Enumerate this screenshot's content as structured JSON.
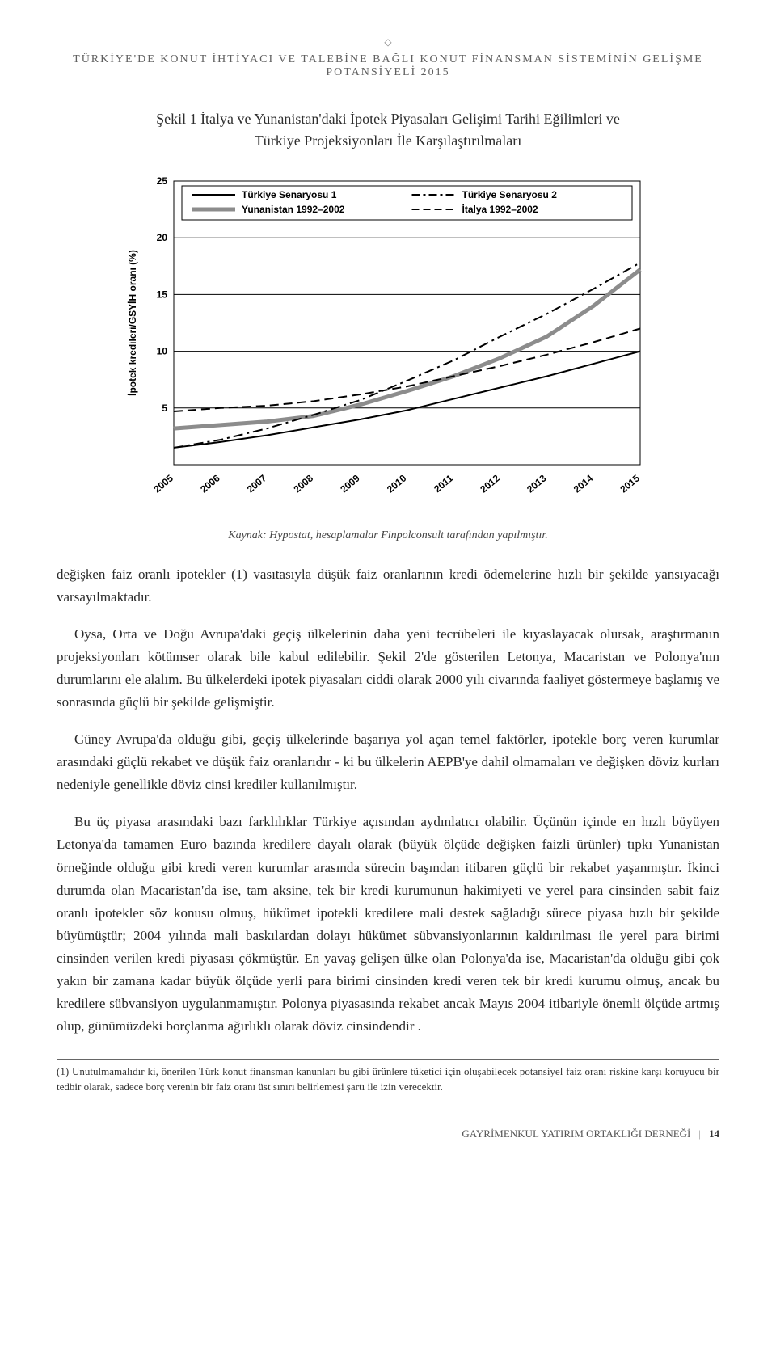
{
  "running_head": "TÜRKİYE'DE KONUT İHTİYACI VE TALEBİNE BAĞLI KONUT FİNANSMAN SİSTEMİNİN GELİŞME POTANSİYELİ 2015",
  "figure_title_line1": "Şekil 1 İtalya ve Yunanistan'daki İpotek Piyasaları Gelişimi Tarihi Eğilimleri ve",
  "figure_title_line2": "Türkiye Projeksiyonları İle Karşılaştırılmaları",
  "chart": {
    "type": "line",
    "background_color": "#ffffff",
    "border_color": "#000000",
    "grid_color": "#000000",
    "ylabel": "İpotek kredileri/GSYİH oranı (%)",
    "ylabel_fontsize": 12,
    "ylim": [
      0,
      25
    ],
    "yticks": [
      0,
      5,
      10,
      15,
      20,
      25
    ],
    "xticks": [
      "2005",
      "2006",
      "2007",
      "2008",
      "2009",
      "2010",
      "2011",
      "2012",
      "2013",
      "2014",
      "2015"
    ],
    "legend": [
      {
        "label": "Türkiye Senaryosu 1",
        "style": "solid-black",
        "color": "#000000",
        "line_width": 2
      },
      {
        "label": "Türkiye Senaryosu 2",
        "style": "dash-dot",
        "color": "#000000",
        "line_width": 2
      },
      {
        "label": "Yunanistan 1992–2002",
        "style": "solid-gray",
        "color": "#8c8c8c",
        "line_width": 5
      },
      {
        "label": "İtalya 1992–2002",
        "style": "dash",
        "color": "#000000",
        "line_width": 2
      }
    ],
    "series": {
      "turkey_s1": [
        1.5,
        2.0,
        2.6,
        3.3,
        4.0,
        4.8,
        5.8,
        6.8,
        7.8,
        8.9,
        10.0
      ],
      "turkey_s2": [
        1.5,
        2.2,
        3.2,
        4.4,
        5.7,
        7.4,
        9.2,
        11.3,
        13.3,
        15.5,
        17.8
      ],
      "greece": [
        3.2,
        3.5,
        3.8,
        4.3,
        5.3,
        6.5,
        7.8,
        9.4,
        11.3,
        14.0,
        17.2
      ],
      "italy": [
        4.7,
        5.0,
        5.2,
        5.6,
        6.2,
        6.9,
        7.8,
        8.7,
        9.7,
        10.8,
        12.0
      ]
    }
  },
  "caption": "Kaynak: Hypostat, hesaplamalar Finpolconsult tarafından yapılmıştır.",
  "para1": "değişken faiz oranlı ipotekler (1) vasıtasıyla düşük faiz oranlarının kredi ödemelerine hızlı bir şekilde yansıyacağı varsayılmaktadır.",
  "para2": "Oysa, Orta ve Doğu Avrupa'daki geçiş ülkelerinin daha yeni tecrübeleri ile kıyaslayacak olursak, araştırmanın projeksiyonları kötümser olarak bile kabul edilebilir. Şekil 2'de gösterilen Letonya, Macaristan ve Polonya'nın durumlarını ele alalım. Bu ülkelerdeki ipotek piyasaları ciddi olarak 2000 yılı civarında faaliyet göstermeye başlamış ve sonrasında güçlü bir şekilde gelişmiştir.",
  "para3": "Güney Avrupa'da olduğu gibi, geçiş ülkelerinde başarıya yol açan temel faktörler, ipotekle borç veren kurumlar arasındaki güçlü rekabet ve düşük faiz oranlarıdır - ki bu ülkelerin AEPB'ye dahil olmamaları ve değişken döviz kurları nedeniyle genellikle döviz cinsi krediler kullanılmıştır.",
  "para4": "Bu üç piyasa arasındaki bazı farklılıklar Türkiye açısından aydınlatıcı olabilir. Üçünün içinde en hızlı büyüyen Letonya'da tamamen Euro bazında kredilere dayalı olarak (büyük ölçüde değişken faizli ürünler) tıpkı Yunanistan örneğinde olduğu gibi kredi veren kurumlar arasında sürecin başından itibaren güçlü bir rekabet yaşanmıştır. İkinci durumda olan Macaristan'da ise, tam aksine, tek bir kredi kurumunun hakimiyeti ve yerel para cinsinden sabit faiz oranlı ipotekler söz konusu olmuş, hükümet ipotekli kredilere mali destek sağladığı sürece piyasa hızlı bir şekilde büyümüştür; 2004 yılında mali baskılardan dolayı hükümet sübvansiyonlarının kaldırılması ile yerel para birimi cinsinden verilen kredi piyasası çökmüştür. En yavaş gelişen ülke olan Polonya'da ise, Macaristan'da olduğu gibi çok yakın bir zamana kadar büyük ölçüde yerli para birimi cinsinden kredi veren tek bir kredi kurumu olmuş, ancak bu kredilere sübvansiyon uygulanmamıştır. Polonya piyasasında rekabet ancak Mayıs 2004 itibariyle önemli ölçüde artmış olup, günümüzdeki  borçlanma ağırlıklı olarak döviz cinsindendir .",
  "footnote": "(1) Unutulmamalıdır ki, önerilen Türk konut finansman kanunları bu gibi ürünlere tüketici için oluşabilecek potansiyel faiz oranı riskine karşı koruyucu bir tedbir olarak, sadece borç verenin bir faiz oranı üst sınırı belirlemesi şartı ile izin verecektir.",
  "footer_text": "GAYRİMENKUL YATIRIM ORTAKLIĞI DERNEĞİ",
  "page_number": "14"
}
